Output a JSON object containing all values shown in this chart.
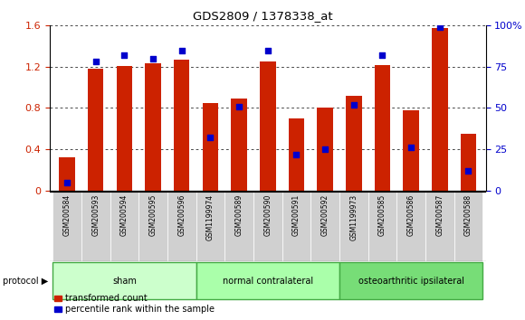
{
  "title": "GDS2809 / 1378338_at",
  "samples": [
    "GSM200584",
    "GSM200593",
    "GSM200594",
    "GSM200595",
    "GSM200596",
    "GSM1199974",
    "GSM200589",
    "GSM200590",
    "GSM200591",
    "GSM200592",
    "GSM1199973",
    "GSM200585",
    "GSM200586",
    "GSM200587",
    "GSM200588"
  ],
  "transformed_count": [
    0.32,
    1.18,
    1.21,
    1.23,
    1.27,
    0.85,
    0.89,
    1.25,
    0.7,
    0.8,
    0.92,
    1.22,
    0.78,
    1.58,
    0.55
  ],
  "percentile_rank": [
    5,
    78,
    82,
    80,
    85,
    32,
    51,
    85,
    22,
    25,
    52,
    82,
    26,
    99,
    12
  ],
  "groups": [
    {
      "label": "sham",
      "start": 0,
      "end": 4
    },
    {
      "label": "normal contralateral",
      "start": 5,
      "end": 9
    },
    {
      "label": "osteoarthritic ipsilateral",
      "start": 10,
      "end": 14
    }
  ],
  "group_colors": [
    "#ccffcc",
    "#aaffaa",
    "#77dd77"
  ],
  "bar_color": "#cc2200",
  "dot_color": "#0000cc",
  "left_ylim": [
    0,
    1.6
  ],
  "left_yticks": [
    0,
    0.4,
    0.8,
    1.2,
    1.6
  ],
  "right_ylim": [
    0,
    100
  ],
  "right_yticks": [
    0,
    25,
    50,
    75,
    100
  ],
  "bar_width": 0.55,
  "bg_color": "#ffffff",
  "tick_label_color_left": "#cc2200",
  "tick_label_color_right": "#0000cc",
  "legend_red_label": "transformed count",
  "legend_blue_label": "percentile rank within the sample",
  "protocol_label": "protocol"
}
